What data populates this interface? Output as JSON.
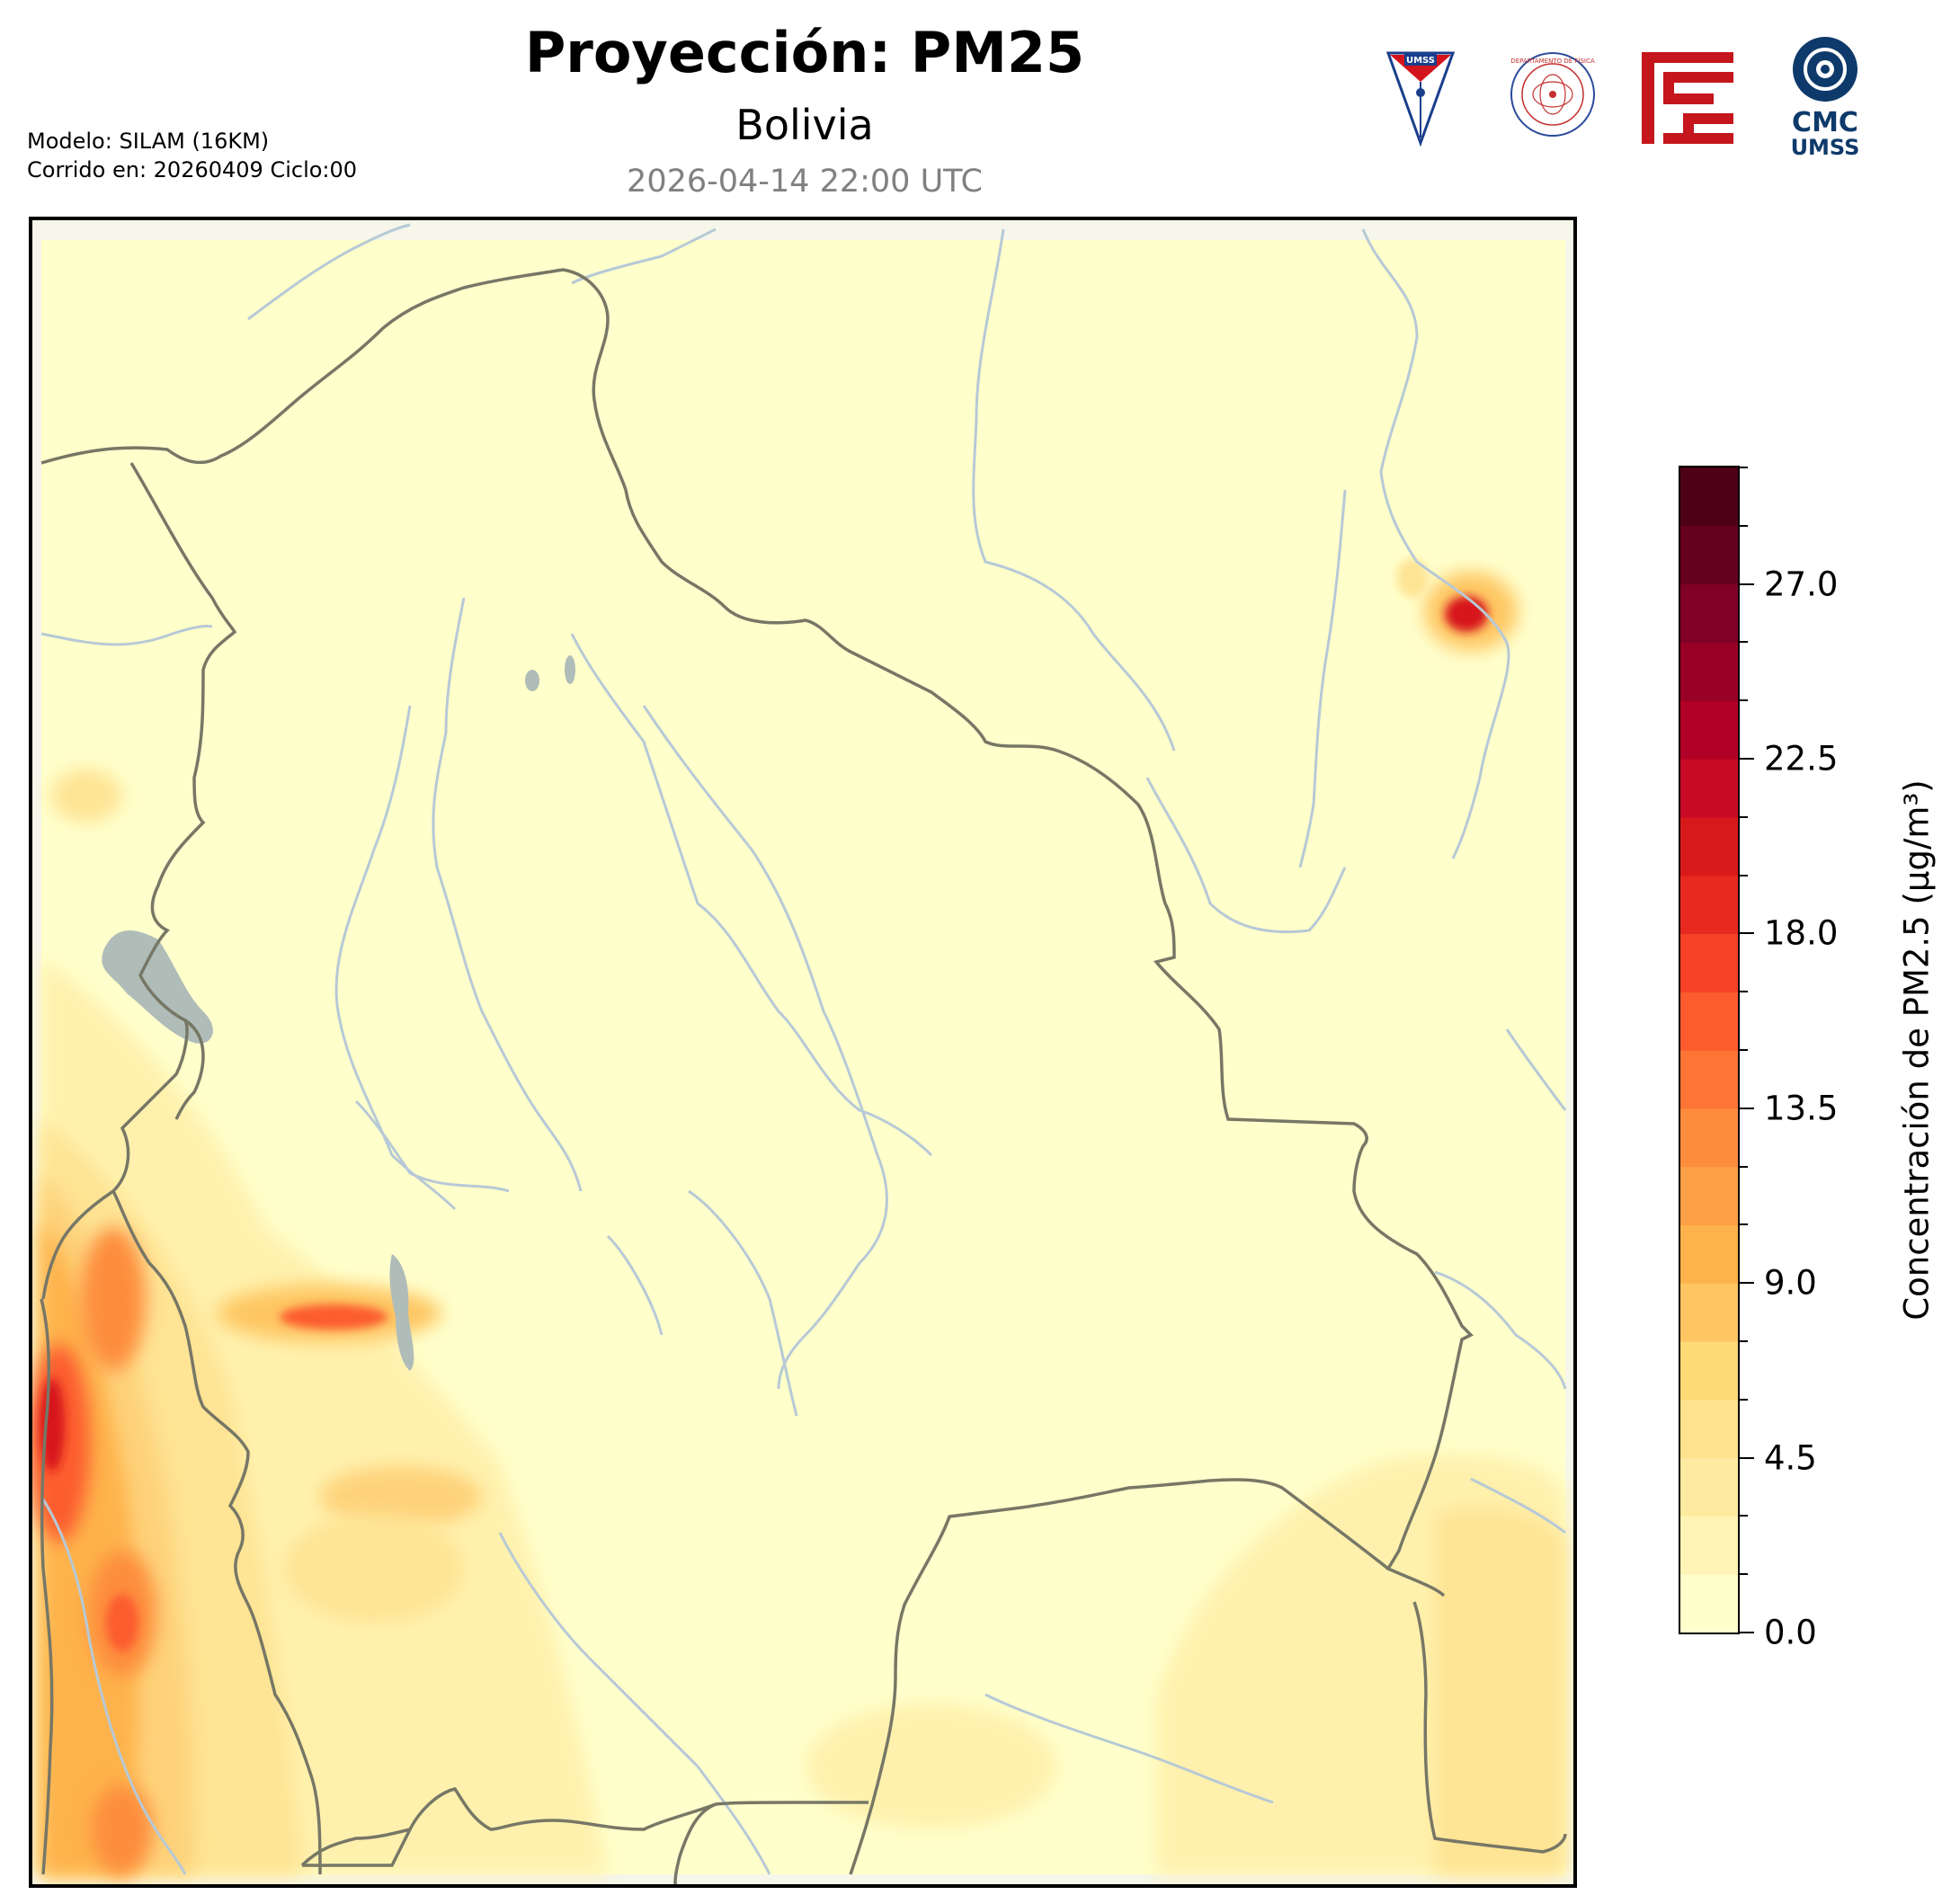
{
  "header": {
    "title": "Proyección: PM25",
    "subtitle": "Bolivia",
    "timestamp": "2026-04-14 22:00 UTC",
    "model_line": "Modelo: SILAM (16KM)",
    "run_line": "Corrido en: 20260409 Ciclo:00"
  },
  "logos": {
    "umss_text": "UMSS",
    "fisica_text": "DEPARTAMENTO DE FÍSICA",
    "cmc_line1": "CMC",
    "cmc_line2": "UMSS"
  },
  "colorbar": {
    "title": "Concentración de PM2.5 (µg/m³)",
    "min": 0.0,
    "max": 30.0,
    "levels": 20,
    "labels": [
      "0.0",
      "4.5",
      "9.0",
      "13.5",
      "18.0",
      "22.5",
      "27.0"
    ],
    "label_values": [
      0.0,
      4.5,
      9.0,
      13.5,
      18.0,
      22.5,
      27.0
    ],
    "colors": [
      "#ffffcc",
      "#fff4b5",
      "#ffeba0",
      "#fee28d",
      "#fed976",
      "#fec662",
      "#feb24c",
      "#fea045",
      "#fd8d3c",
      "#fd7434",
      "#fc5b2e",
      "#f44127",
      "#e8291f",
      "#d7191c",
      "#c70b24",
      "#b10026",
      "#990025",
      "#800026",
      "#66001f",
      "#4d0016"
    ]
  },
  "map": {
    "field": "PM2.5",
    "units": "µg/m³",
    "background_color": "#ffffcc",
    "country_border_color": "#777766",
    "river_color": "#b7c9d6",
    "lake_color": "#b0bcb8"
  }
}
